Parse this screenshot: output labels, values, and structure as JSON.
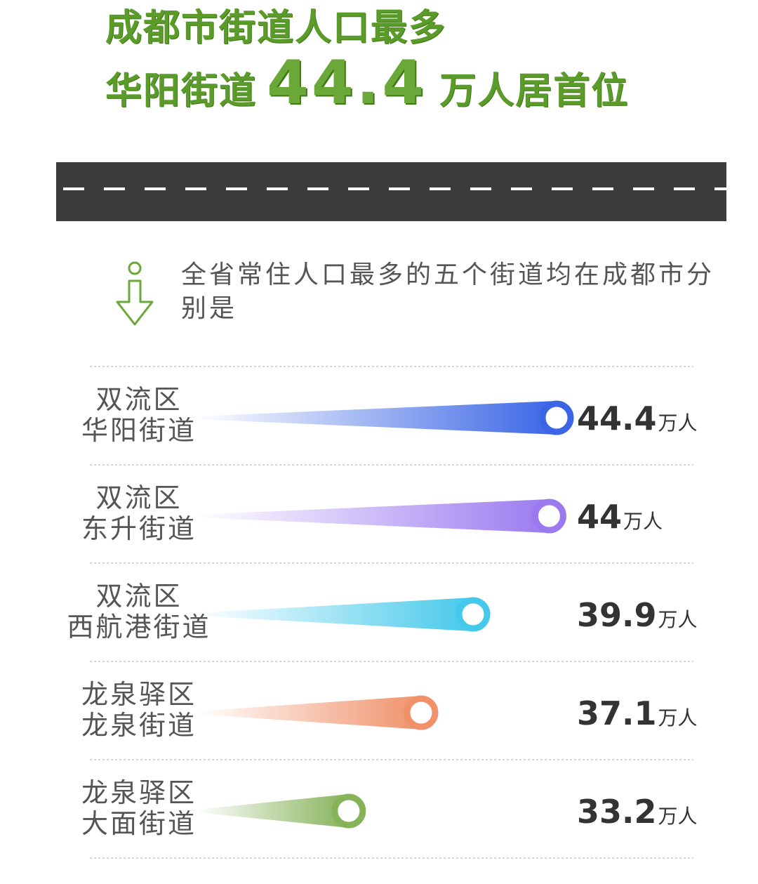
{
  "header": {
    "title_line1": "成都市街道人口最多",
    "title_line2_prefix": "华阳街道",
    "title_line2_number": "44.4",
    "title_line2_suffix": "万人居首位",
    "accent_color": "#5b9b2a"
  },
  "intro": {
    "text": "全省常住人口最多的五个街道均在成都市分别是"
  },
  "chart_data": {
    "type": "bar",
    "unit": "万人",
    "categories": [
      {
        "district": "双流区",
        "street": "华阳街道",
        "value": 44.4,
        "label": "44.4",
        "color": "#3a66e6"
      },
      {
        "district": "双流区",
        "street": "东升街道",
        "value": 44,
        "label": "44",
        "color": "#9b7af0"
      },
      {
        "district": "双流区",
        "street": "西航港街道",
        "value": 39.9,
        "label": "39.9",
        "color": "#45c9ea"
      },
      {
        "district": "龙泉驿区",
        "street": "龙泉街道",
        "value": 37.1,
        "label": "37.1",
        "color": "#f0916a"
      },
      {
        "district": "龙泉驿区",
        "street": "大面街道",
        "value": 33.2,
        "label": "33.2",
        "color": "#86b25a"
      }
    ]
  }
}
